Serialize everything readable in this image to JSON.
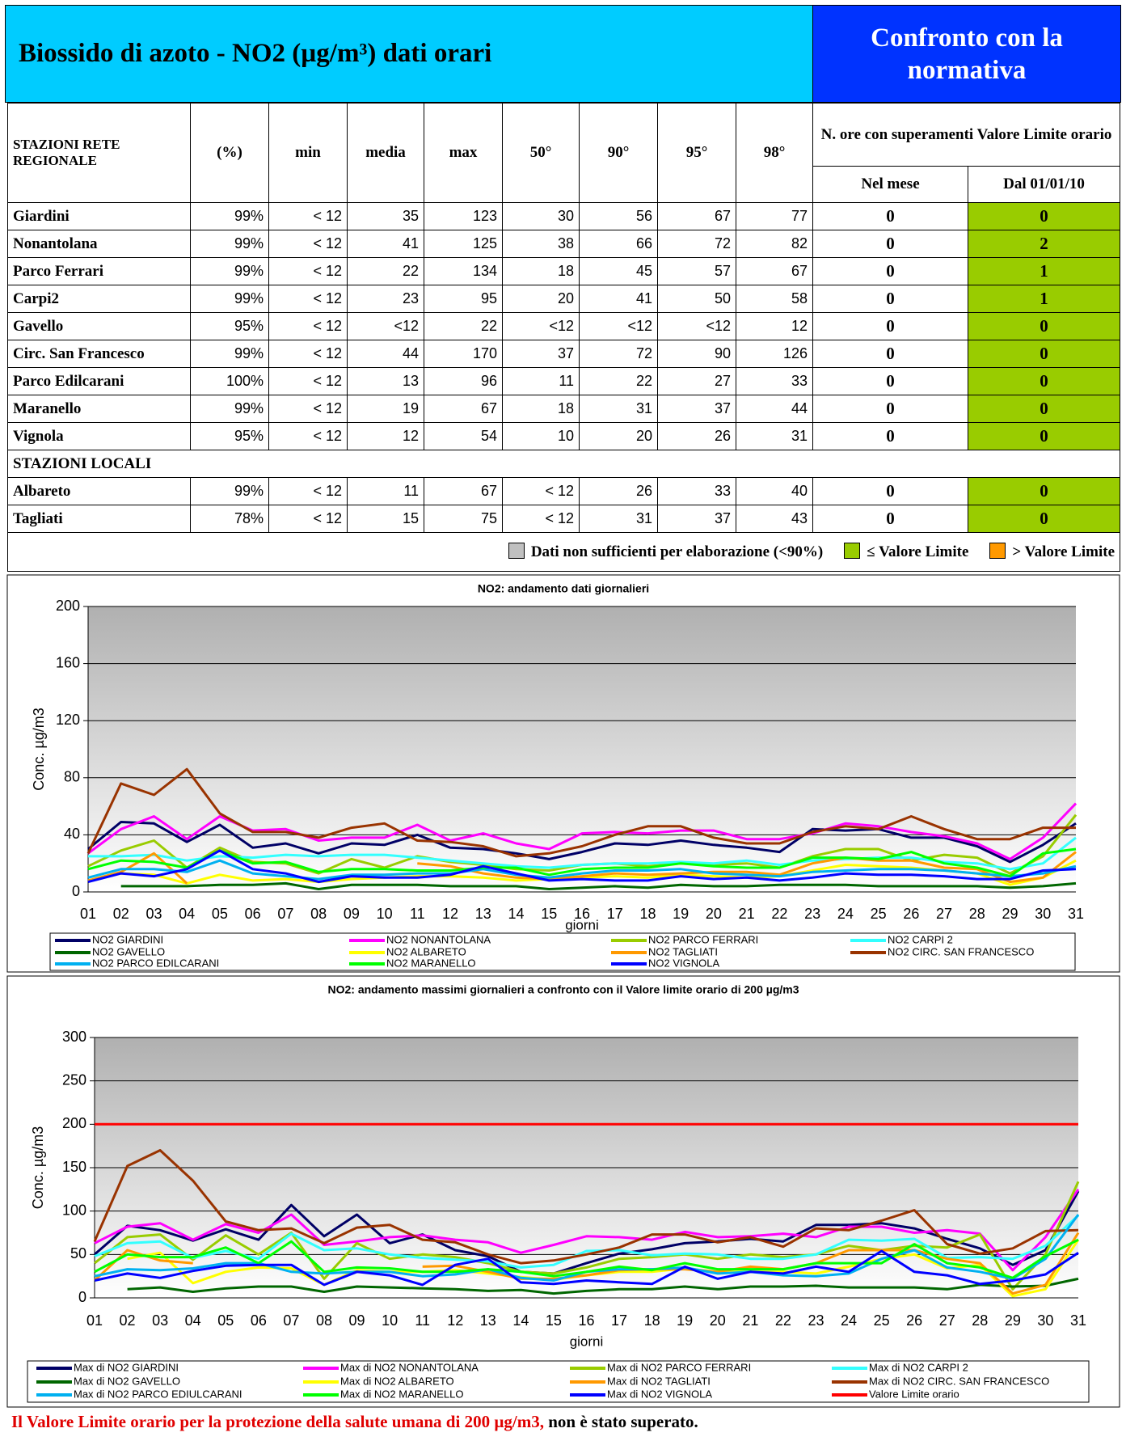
{
  "header": {
    "title": "Biossido di azoto - NO2 (µg/m³) dati orari",
    "right_title": "Confronto con la normativa"
  },
  "table": {
    "columns": [
      "STAZIONI  RETE REGIONALE",
      "(%)",
      "min",
      "media",
      "max",
      "50°",
      "90°",
      "95°",
      "98°"
    ],
    "group_header": "N. ore con superamenti Valore Limite orario",
    "subcolumns": [
      "Nel mese",
      "Dal 01/01/10"
    ],
    "rows": [
      [
        "Giardini",
        "99%",
        "< 12",
        35,
        123,
        30,
        56,
        67,
        77,
        0,
        0
      ],
      [
        "Nonantolana",
        "99%",
        "< 12",
        41,
        125,
        38,
        66,
        72,
        82,
        0,
        2
      ],
      [
        "Parco Ferrari",
        "99%",
        "< 12",
        22,
        134,
        18,
        45,
        57,
        67,
        0,
        1
      ],
      [
        "Carpi2",
        "99%",
        "< 12",
        23,
        95,
        20,
        41,
        50,
        58,
        0,
        1
      ],
      [
        "Gavello",
        "95%",
        "< 12",
        "<12",
        22,
        "<12",
        "<12",
        "<12",
        12,
        0,
        0
      ],
      [
        "Circ. San Francesco",
        "99%",
        "< 12",
        44,
        170,
        37,
        72,
        90,
        126,
        0,
        0
      ],
      [
        "Parco Edilcarani",
        "100%",
        "< 12",
        13,
        96,
        11,
        22,
        27,
        33,
        0,
        0
      ],
      [
        "Maranello",
        "99%",
        "< 12",
        19,
        67,
        18,
        31,
        37,
        44,
        0,
        0
      ],
      [
        "Vignola",
        "95%",
        "< 12",
        12,
        54,
        10,
        20,
        26,
        31,
        0,
        0
      ]
    ],
    "section": "STAZIONI LOCALI",
    "local_rows": [
      [
        "Albareto",
        "99%",
        "< 12",
        11,
        67,
        "< 12",
        26,
        33,
        40,
        0,
        0
      ],
      [
        "Tagliati",
        "78%",
        "< 12",
        15,
        75,
        "< 12",
        31,
        37,
        43,
        0,
        0
      ]
    ],
    "legend": [
      {
        "label": "Dati non sufficienti per elaborazione  (<90%)",
        "color": "#c0c0c0"
      },
      {
        "label": "≤ Valore Limite",
        "color": "#99cc00"
      },
      {
        "label": "> Valore Limite",
        "color": "#ff9900"
      }
    ]
  },
  "chart_data": [
    {
      "type": "line",
      "title": "NO2: andamento dati giornalieri",
      "xlabel": "giorni",
      "ylabel": "Conc. µg/m3",
      "categories": [
        "01",
        "02",
        "03",
        "04",
        "05",
        "06",
        "07",
        "08",
        "09",
        "10",
        "11",
        "12",
        "13",
        "14",
        "15",
        "16",
        "17",
        "18",
        "19",
        "20",
        "21",
        "22",
        "23",
        "24",
        "25",
        "26",
        "27",
        "28",
        "29",
        "30",
        "31"
      ],
      "ylim": [
        0,
        200
      ],
      "yticks": [
        0,
        40,
        80,
        120,
        160,
        200
      ],
      "grid": true,
      "series": [
        {
          "name": "NO2  GIARDINI",
          "color": "#000066",
          "values": [
            30,
            49,
            48,
            35,
            47,
            31,
            34,
            27,
            34,
            33,
            40,
            31,
            30,
            27,
            23,
            28,
            34,
            33,
            36,
            33,
            31,
            28,
            44,
            43,
            44,
            38,
            38,
            32,
            21,
            33,
            48
          ]
        },
        {
          "name": "NO2  NONANTOLANA",
          "color": "#ff00ff",
          "values": [
            27,
            44,
            53,
            37,
            53,
            43,
            44,
            36,
            38,
            38,
            47,
            36,
            41,
            34,
            30,
            41,
            42,
            41,
            43,
            43,
            37,
            37,
            41,
            48,
            46,
            42,
            39,
            34,
            23,
            38,
            62
          ]
        },
        {
          "name": "NO2  PARCO FERRARI",
          "color": "#99cc00",
          "values": [
            18,
            29,
            36,
            17,
            31,
            21,
            20,
            13,
            23,
            17,
            25,
            21,
            19,
            16,
            15,
            19,
            20,
            18,
            20,
            19,
            20,
            17,
            25,
            30,
            30,
            22,
            26,
            24,
            13,
            25,
            54
          ]
        },
        {
          "name": "NO2 CARPI 2",
          "color": "#33ffff",
          "values": [
            25,
            25,
            26,
            22,
            25,
            24,
            26,
            25,
            26,
            26,
            24,
            22,
            20,
            18,
            17,
            19,
            20,
            20,
            21,
            20,
            22,
            19,
            22,
            23,
            24,
            24,
            21,
            20,
            16,
            20,
            38
          ]
        },
        {
          "name": "NO2 GAVELLO",
          "color": "#006600",
          "values": [
            null,
            4,
            4,
            4,
            5,
            5,
            6,
            2,
            5,
            5,
            5,
            4,
            4,
            4,
            2,
            3,
            4,
            3,
            5,
            4,
            4,
            5,
            5,
            5,
            4,
            4,
            4,
            4,
            3,
            4,
            6
          ]
        },
        {
          "name": "NO2 ALBARETO",
          "color": "#ffff00",
          "values": [
            null,
            13,
            12,
            6,
            12,
            8,
            9,
            7,
            9,
            10,
            11,
            11,
            10,
            8,
            9,
            10,
            11,
            10,
            12,
            11,
            10,
            11,
            15,
            19,
            18,
            17,
            15,
            13,
            5,
            10,
            22
          ]
        },
        {
          "name": "NO2 TAGLIATI",
          "color": "#ff9900",
          "values": [
            8,
            14,
            27,
            6,
            null,
            null,
            null,
            null,
            null,
            null,
            20,
            18,
            13,
            10,
            9,
            11,
            13,
            12,
            13,
            14,
            14,
            12,
            20,
            24,
            22,
            22,
            17,
            16,
            7,
            10,
            28
          ]
        },
        {
          "name": "NO2 CIRC. SAN FRANCESCO",
          "color": "#993300",
          "values": [
            27,
            76,
            68,
            86,
            55,
            42,
            42,
            38,
            45,
            48,
            36,
            35,
            32,
            25,
            27,
            32,
            40,
            46,
            46,
            38,
            34,
            34,
            42,
            46,
            44,
            53,
            44,
            37,
            37,
            45,
            45
          ]
        },
        {
          "name": "NO2 PARCO EDILCARANI",
          "color": "#00b0f0",
          "values": [
            10,
            16,
            16,
            14,
            22,
            13,
            11,
            9,
            12,
            12,
            13,
            13,
            16,
            12,
            10,
            13,
            15,
            15,
            16,
            13,
            12,
            11,
            14,
            15,
            16,
            16,
            15,
            13,
            11,
            13,
            18
          ]
        },
        {
          "name": "NO2 MARANELLO",
          "color": "#00ff00",
          "values": [
            16,
            22,
            21,
            17,
            29,
            20,
            21,
            14,
            16,
            16,
            15,
            15,
            17,
            17,
            12,
            16,
            17,
            17,
            20,
            18,
            17,
            17,
            24,
            24,
            23,
            28,
            20,
            17,
            11,
            27,
            30
          ]
        },
        {
          "name": "NO2 VIGNOLA",
          "color": "#0000ff",
          "values": [
            7,
            13,
            11,
            16,
            29,
            16,
            13,
            7,
            11,
            10,
            10,
            12,
            18,
            13,
            8,
            9,
            8,
            8,
            11,
            9,
            10,
            8,
            10,
            13,
            12,
            12,
            11,
            9,
            9,
            15,
            16
          ]
        }
      ]
    },
    {
      "type": "line",
      "title": "NO2: andamento massimi giornalieri a confronto con il Valore  limite orario di 200 µg/m3",
      "xlabel": "giorni",
      "ylabel": "Conc. µg/m3",
      "categories": [
        "01",
        "02",
        "03",
        "04",
        "05",
        "06",
        "07",
        "08",
        "09",
        "10",
        "11",
        "12",
        "13",
        "14",
        "15",
        "16",
        "17",
        "18",
        "19",
        "20",
        "21",
        "22",
        "23",
        "24",
        "25",
        "26",
        "27",
        "28",
        "29",
        "30",
        "31"
      ],
      "ylim": [
        0,
        300
      ],
      "yticks": [
        0,
        50,
        100,
        150,
        200,
        250,
        300
      ],
      "grid": true,
      "series": [
        {
          "name": "Max di NO2  GIARDINI",
          "color": "#000066",
          "values": [
            50,
            83,
            78,
            66,
            79,
            67,
            107,
            71,
            96,
            63,
            73,
            55,
            48,
            30,
            28,
            40,
            51,
            56,
            63,
            65,
            68,
            65,
            84,
            84,
            86,
            80,
            68,
            57,
            38,
            55,
            123
          ]
        },
        {
          "name": "Max di NO2  NONANTOLANA",
          "color": "#ff00ff",
          "values": [
            63,
            82,
            86,
            67,
            85,
            75,
            96,
            61,
            65,
            70,
            72,
            67,
            64,
            52,
            61,
            71,
            70,
            67,
            76,
            70,
            71,
            74,
            70,
            82,
            82,
            75,
            78,
            74,
            32,
            70,
            125
          ]
        },
        {
          "name": "Max di NO2  PARCO FERRARI",
          "color": "#99cc00",
          "values": [
            40,
            70,
            73,
            44,
            72,
            50,
            75,
            22,
            63,
            45,
            50,
            47,
            40,
            30,
            28,
            35,
            45,
            47,
            50,
            45,
            50,
            47,
            50,
            60,
            55,
            60,
            58,
            73,
            10,
            50,
            134
          ]
        },
        {
          "name": "Max di NO2 CARPI 2",
          "color": "#33ffff",
          "values": [
            48,
            63,
            65,
            46,
            54,
            45,
            74,
            55,
            57,
            50,
            46,
            44,
            42,
            35,
            38,
            54,
            55,
            49,
            51,
            50,
            45,
            45,
            50,
            67,
            66,
            68,
            46,
            47,
            45,
            60,
            95
          ]
        },
        {
          "name": "Max di NO2 GAVELLO",
          "color": "#006600",
          "values": [
            null,
            10,
            12,
            7,
            11,
            13,
            13,
            7,
            13,
            12,
            11,
            10,
            8,
            9,
            5,
            8,
            10,
            10,
            13,
            10,
            13,
            13,
            14,
            12,
            12,
            12,
            10,
            15,
            13,
            14,
            22
          ]
        },
        {
          "name": "Max di NO2 ALBARETO",
          "color": "#ffff00",
          "values": [
            null,
            45,
            52,
            17,
            30,
            35,
            34,
            15,
            32,
            30,
            30,
            32,
            28,
            24,
            21,
            26,
            30,
            30,
            34,
            30,
            30,
            30,
            28,
            36,
            45,
            50,
            34,
            38,
            2,
            10,
            67
          ]
        },
        {
          "name": "Max di NO2 TAGLIATI",
          "color": "#ff9900",
          "values": [
            20,
            55,
            43,
            40,
            null,
            null,
            null,
            null,
            null,
            null,
            36,
            37,
            30,
            22,
            22,
            26,
            32,
            33,
            33,
            30,
            36,
            33,
            40,
            55,
            55,
            55,
            45,
            40,
            5,
            15,
            75
          ]
        },
        {
          "name": "Max di NO2 CIRC. SAN FRANCESCO",
          "color": "#993300",
          "values": [
            65,
            152,
            170,
            135,
            88,
            78,
            80,
            63,
            81,
            84,
            67,
            64,
            50,
            40,
            43,
            50,
            58,
            73,
            73,
            64,
            70,
            59,
            80,
            78,
            89,
            101,
            62,
            51,
            57,
            77,
            78
          ]
        },
        {
          "name": "Max di NO2 PARCO EDIULCARANI",
          "color": "#00b0f0",
          "values": [
            25,
            33,
            32,
            34,
            40,
            40,
            30,
            28,
            30,
            30,
            25,
            27,
            33,
            23,
            20,
            30,
            33,
            33,
            35,
            28,
            30,
            26,
            25,
            28,
            45,
            55,
            35,
            30,
            22,
            45,
            96
          ]
        },
        {
          "name": "Max di  NO2 MARANELLO",
          "color": "#00ff00",
          "values": [
            30,
            50,
            47,
            47,
            58,
            40,
            65,
            30,
            35,
            34,
            30,
            30,
            33,
            30,
            25,
            30,
            36,
            32,
            40,
            33,
            33,
            33,
            40,
            40,
            40,
            62,
            40,
            35,
            23,
            48,
            67
          ]
        },
        {
          "name": "Max di NO2 VIGNOLA",
          "color": "#0000ff",
          "values": [
            20,
            28,
            23,
            31,
            37,
            38,
            38,
            15,
            30,
            26,
            15,
            38,
            45,
            18,
            16,
            20,
            18,
            16,
            36,
            22,
            30,
            28,
            36,
            30,
            54,
            30,
            26,
            16,
            20,
            27,
            52
          ]
        },
        {
          "name": "Valore Limite orario",
          "color": "#ff0000",
          "values": [
            200,
            200,
            200,
            200,
            200,
            200,
            200,
            200,
            200,
            200,
            200,
            200,
            200,
            200,
            200,
            200,
            200,
            200,
            200,
            200,
            200,
            200,
            200,
            200,
            200,
            200,
            200,
            200,
            200,
            200,
            200
          ]
        }
      ]
    }
  ],
  "footer": {
    "warning": "Il Valore Limite orario per la protezione della salute umana di 200 µg/m3,",
    "result": " non  è stato superato."
  }
}
